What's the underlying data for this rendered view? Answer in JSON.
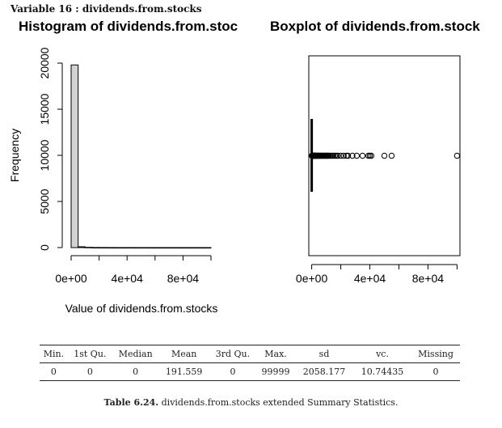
{
  "variable_label": "Variable 16 :",
  "variable_name": "dividends.from.stocks",
  "histogram": {
    "title": "Histogram of dividends.from.stoc",
    "xlabel": "Value of dividends.from.stocks",
    "ylabel": "Frequency"
  },
  "boxplot": {
    "title": "Boxplot of dividends.from.stock"
  },
  "chart_data": [
    {
      "type": "bar",
      "title": "Histogram of dividends.from.stoc",
      "xlabel": "Value of dividends.from.stocks",
      "ylabel": "Frequency",
      "bin_width": 5000,
      "bins": [
        {
          "x0": 0,
          "x1": 5000,
          "count": 19800
        },
        {
          "x0": 5000,
          "x1": 10000,
          "count": 90
        },
        {
          "x0": 10000,
          "x1": 15000,
          "count": 30
        },
        {
          "x0": 15000,
          "x1": 20000,
          "count": 12
        },
        {
          "x0": 20000,
          "x1": 25000,
          "count": 8
        },
        {
          "x0": 25000,
          "x1": 30000,
          "count": 5
        },
        {
          "x0": 30000,
          "x1": 35000,
          "count": 3
        },
        {
          "x0": 35000,
          "x1": 40000,
          "count": 3
        },
        {
          "x0": 40000,
          "x1": 45000,
          "count": 4
        },
        {
          "x0": 45000,
          "x1": 50000,
          "count": 2
        },
        {
          "x0": 50000,
          "x1": 55000,
          "count": 2
        },
        {
          "x0": 55000,
          "x1": 60000,
          "count": 1
        },
        {
          "x0": 60000,
          "x1": 65000,
          "count": 1
        },
        {
          "x0": 65000,
          "x1": 70000,
          "count": 1
        },
        {
          "x0": 70000,
          "x1": 75000,
          "count": 1
        },
        {
          "x0": 75000,
          "x1": 80000,
          "count": 1
        },
        {
          "x0": 80000,
          "x1": 85000,
          "count": 1
        },
        {
          "x0": 85000,
          "x1": 90000,
          "count": 1
        },
        {
          "x0": 90000,
          "x1": 95000,
          "count": 1
        },
        {
          "x0": 95000,
          "x1": 100000,
          "count": 1
        }
      ],
      "xlim": [
        0,
        100000
      ],
      "ylim": [
        0,
        20000
      ],
      "xticks": [
        0,
        40000,
        80000
      ],
      "xtick_labels": [
        "0e+00",
        "4e+04",
        "8e+04"
      ],
      "yticks": [
        0,
        5000,
        10000,
        15000,
        20000
      ],
      "ytick_labels": [
        "0",
        "5000",
        "10000",
        "15000",
        "20000"
      ],
      "grid": false
    },
    {
      "type": "scatter",
      "subtype": "boxplot",
      "title": "Boxplot of dividends.from.stock",
      "orientation": "horizontal",
      "box": {
        "min": 0,
        "q1": 0,
        "median": 0,
        "q3": 0,
        "max": 0
      },
      "outliers": [
        200,
        350,
        500,
        700,
        900,
        1100,
        1300,
        1500,
        1700,
        1900,
        2100,
        2400,
        2700,
        3000,
        3300,
        3600,
        4000,
        4400,
        4800,
        5200,
        5600,
        6000,
        6500,
        7000,
        7500,
        8000,
        8500,
        9000,
        9500,
        10000,
        10500,
        11000,
        11500,
        12000,
        13000,
        14000,
        15000,
        16000,
        17000,
        18000,
        20000,
        22000,
        24000,
        25000,
        28000,
        31000,
        35000,
        39000,
        40000,
        41000,
        50000,
        55000,
        99999
      ],
      "xlim": [
        -2000,
        102000
      ],
      "xticks": [
        0,
        40000,
        80000
      ],
      "xtick_labels": [
        "0e+00",
        "4e+04",
        "8e+04"
      ],
      "grid": false
    }
  ],
  "stats_table": {
    "headers": [
      "Min.",
      "1st Qu.",
      "Median",
      "Mean",
      "3rd Qu.",
      "Max.",
      "sd",
      "vc.",
      "Missing"
    ],
    "values": [
      "0",
      "0",
      "0",
      "191.559",
      "0",
      "99999",
      "2058.177",
      "10.74435",
      "0"
    ]
  },
  "caption": {
    "label": "Table 6.24.",
    "text": "dividends.from.stocks extended Summary Statistics."
  }
}
